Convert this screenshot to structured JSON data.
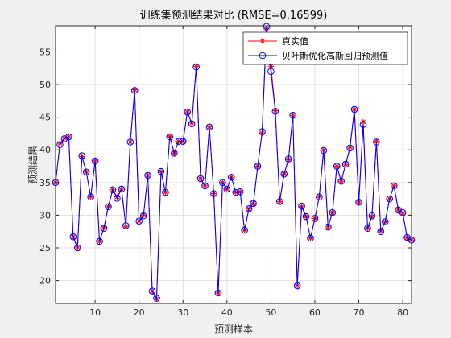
{
  "chart_data": {
    "type": "line",
    "title": "训练集预测结果对比 (RMSE=0.16599)",
    "xlabel": "预测样本",
    "ylabel": "预测结果",
    "xlim": [
      1,
      82
    ],
    "ylim": [
      16.5,
      59
    ],
    "xticks": [
      10,
      20,
      30,
      40,
      50,
      60,
      70,
      80
    ],
    "yticks": [
      20,
      25,
      30,
      35,
      40,
      45,
      50,
      55
    ],
    "grid": true,
    "legend_position": "top-right",
    "series": [
      {
        "name": "真实值",
        "color": "#ff0000",
        "marker": "asterisk",
        "values": [
          35.0,
          41.0,
          41.8,
          42.0,
          26.7,
          25.0,
          39.0,
          36.6,
          32.8,
          38.4,
          26.0,
          28.1,
          31.3,
          33.9,
          32.8,
          34.0,
          28.3,
          41.2,
          49.2,
          29.1,
          30.0,
          36.1,
          18.4,
          17.2,
          36.7,
          33.5,
          42.1,
          39.5,
          41.3,
          41.3,
          45.8,
          44.1,
          52.8,
          35.6,
          34.5,
          43.5,
          33.3,
          18.1,
          35.0,
          34.0,
          35.8,
          33.5,
          33.6,
          27.7,
          31.0,
          31.8,
          37.5,
          42.6,
          58.5,
          52.8,
          46.0,
          32.1,
          36.3,
          38.5,
          45.3,
          19.2,
          31.3,
          29.8,
          26.5,
          29.5,
          32.9,
          40.0,
          28.2,
          30.4,
          37.5,
          35.2,
          37.8,
          40.4,
          46.2,
          32.0,
          44.3,
          28.0,
          29.8,
          41.3,
          27.6,
          29.0,
          32.5,
          34.5,
          30.8,
          30.3,
          26.5,
          26.2
        ]
      },
      {
        "name": "贝叶斯优化高斯回归预测值",
        "color": "#0000ff",
        "marker": "circle",
        "values": [
          35.0,
          40.8,
          41.7,
          42.0,
          26.7,
          25.0,
          39.1,
          36.6,
          32.8,
          38.3,
          26.0,
          28.0,
          31.3,
          33.9,
          32.6,
          34.0,
          28.4,
          41.2,
          49.1,
          29.1,
          29.9,
          36.1,
          18.4,
          17.3,
          36.7,
          33.5,
          42.0,
          39.5,
          41.3,
          41.3,
          45.8,
          44.0,
          52.7,
          35.6,
          34.5,
          43.5,
          33.3,
          18.1,
          35.0,
          34.0,
          35.8,
          33.5,
          33.6,
          27.7,
          31.0,
          31.8,
          37.5,
          42.8,
          58.9,
          52.0,
          45.9,
          32.1,
          36.3,
          38.6,
          45.3,
          19.2,
          31.4,
          29.8,
          26.5,
          29.5,
          32.8,
          39.9,
          28.2,
          30.4,
          37.5,
          35.2,
          37.8,
          40.3,
          46.2,
          32.0,
          43.9,
          28.0,
          29.9,
          41.2,
          27.5,
          29.0,
          32.5,
          34.5,
          30.8,
          30.4,
          26.6,
          26.2
        ]
      }
    ]
  }
}
